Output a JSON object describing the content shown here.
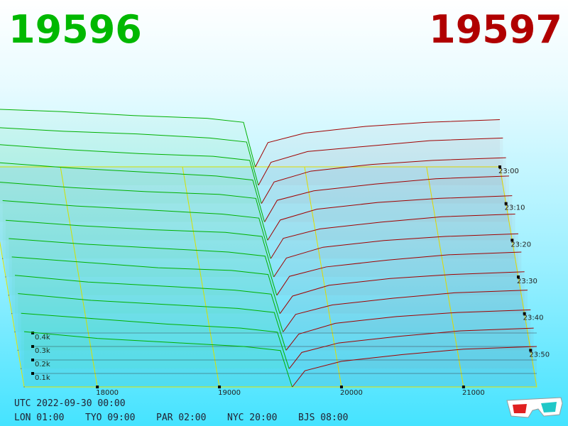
{
  "header": {
    "bid": "19596",
    "ask": "19597"
  },
  "chart_data": {
    "type": "depth3d",
    "xlim": [
      17400,
      21600
    ],
    "xticks": [
      18000,
      19000,
      20000,
      21000
    ],
    "ylim": [
      0,
      0.5
    ],
    "yticks": [
      {
        "value": 0.1,
        "label": "0.1k"
      },
      {
        "value": 0.2,
        "label": "0.2k"
      },
      {
        "value": 0.3,
        "label": "0.3k"
      },
      {
        "value": 0.4,
        "label": "0.4k"
      }
    ],
    "zlim": [
      0,
      60
    ],
    "zticks": [
      {
        "value": 0,
        "label": "23:00"
      },
      {
        "value": 10,
        "label": "23:10"
      },
      {
        "value": 20,
        "label": "23:20"
      },
      {
        "value": 30,
        "label": "23:30"
      },
      {
        "value": 40,
        "label": "23:40"
      },
      {
        "value": 50,
        "label": "23:50"
      }
    ],
    "bid_color": "#00b000",
    "ask_color": "#a00000",
    "grid_color": "#e6e600",
    "bid_prices": [
      17400,
      18000,
      18600,
      19200,
      19500,
      19596
    ],
    "ask_prices": [
      19597,
      19700,
      20000,
      20500,
      21000,
      21600
    ],
    "slices": [
      {
        "t": 0,
        "bids": [
          0.43,
          0.41,
          0.38,
          0.36,
          0.33,
          0
        ],
        "asks": [
          0,
          0.18,
          0.25,
          0.3,
          0.33,
          0.35
        ]
      },
      {
        "t": 5,
        "bids": [
          0.43,
          0.4,
          0.38,
          0.35,
          0.32,
          0
        ],
        "asks": [
          0,
          0.17,
          0.25,
          0.29,
          0.33,
          0.35
        ]
      },
      {
        "t": 10,
        "bids": [
          0.44,
          0.4,
          0.37,
          0.35,
          0.32,
          0
        ],
        "asks": [
          0,
          0.16,
          0.24,
          0.29,
          0.32,
          0.34
        ]
      },
      {
        "t": 15,
        "bids": [
          0.44,
          0.4,
          0.37,
          0.34,
          0.31,
          0
        ],
        "asks": [
          0,
          0.16,
          0.23,
          0.28,
          0.32,
          0.34
        ]
      },
      {
        "t": 20,
        "bids": [
          0.43,
          0.39,
          0.36,
          0.34,
          0.31,
          0
        ],
        "asks": [
          0,
          0.15,
          0.23,
          0.28,
          0.31,
          0.33
        ]
      },
      {
        "t": 25,
        "bids": [
          0.43,
          0.39,
          0.36,
          0.33,
          0.3,
          0
        ],
        "asks": [
          0,
          0.15,
          0.22,
          0.27,
          0.31,
          0.33
        ]
      },
      {
        "t": 30,
        "bids": [
          0.42,
          0.38,
          0.35,
          0.33,
          0.3,
          0
        ],
        "asks": [
          0,
          0.14,
          0.22,
          0.27,
          0.3,
          0.32
        ]
      },
      {
        "t": 35,
        "bids": [
          0.42,
          0.38,
          0.35,
          0.32,
          0.29,
          0
        ],
        "asks": [
          0,
          0.14,
          0.21,
          0.26,
          0.3,
          0.32
        ]
      },
      {
        "t": 40,
        "bids": [
          0.42,
          0.38,
          0.34,
          0.32,
          0.29,
          0
        ],
        "asks": [
          0,
          0.13,
          0.21,
          0.26,
          0.29,
          0.31
        ]
      },
      {
        "t": 45,
        "bids": [
          0.42,
          0.37,
          0.34,
          0.31,
          0.28,
          0
        ],
        "asks": [
          0,
          0.13,
          0.2,
          0.25,
          0.29,
          0.31
        ]
      },
      {
        "t": 50,
        "bids": [
          0.42,
          0.37,
          0.34,
          0.31,
          0.28,
          0
        ],
        "asks": [
          0,
          0.12,
          0.2,
          0.25,
          0.28,
          0.3
        ]
      },
      {
        "t": 55,
        "bids": [
          0.41,
          0.37,
          0.33,
          0.3,
          0.27,
          0
        ],
        "asks": [
          0,
          0.12,
          0.19,
          0.24,
          0.28,
          0.3
        ]
      },
      {
        "t": 60,
        "bids": [
          0.41,
          0.36,
          0.33,
          0.3,
          0.27,
          0
        ],
        "asks": [
          0,
          0.12,
          0.19,
          0.24,
          0.28,
          0.3
        ]
      }
    ]
  },
  "footer": {
    "utc": "UTC 2022-09-30 00:00",
    "clocks": [
      "LON 01:00",
      "TYO 09:00",
      "PAR 02:00",
      "NYC 20:00",
      "BJS 08:00"
    ]
  }
}
